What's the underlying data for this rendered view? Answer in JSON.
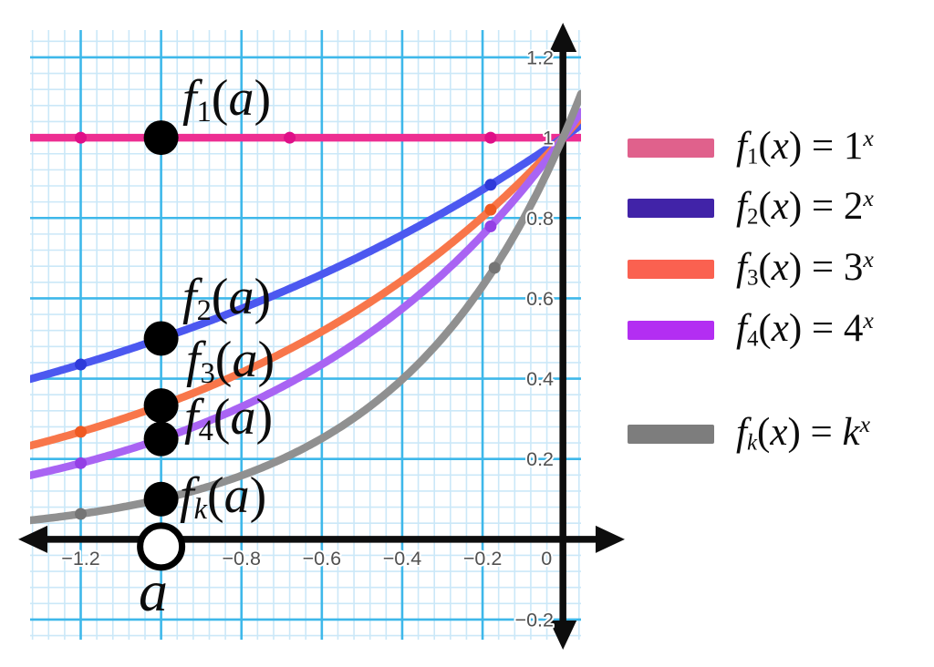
{
  "figure": {
    "a_label": "a"
  },
  "point_labels": [
    {
      "f": "f",
      "sub": "1",
      "open": "(",
      "var": "a",
      "close": ")"
    },
    {
      "f": "f",
      "sub": "2",
      "open": "(",
      "var": "a",
      "close": ")"
    },
    {
      "f": "f",
      "sub": "3",
      "open": "(",
      "var": "a",
      "close": ")"
    },
    {
      "f": "f",
      "sub": "4",
      "open": "(",
      "var": "a",
      "close": ")"
    },
    {
      "f": "f",
      "sub": "k",
      "open": "(",
      "var": "a",
      "close": ")"
    }
  ],
  "legend": {
    "items": [
      {
        "f": "f",
        "sub": "1",
        "open": "(",
        "var": "x",
        "eq": ") = ",
        "base": "1",
        "exp": "x",
        "swatch_color": "#e0618c"
      },
      {
        "f": "f",
        "sub": "2",
        "open": "(",
        "var": "x",
        "eq": ") = ",
        "base": "2",
        "exp": "x",
        "swatch_color": "#4123a8"
      },
      {
        "f": "f",
        "sub": "3",
        "open": "(",
        "var": "x",
        "eq": ") = ",
        "base": "3",
        "exp": "x",
        "swatch_color": "#fa6150"
      },
      {
        "f": "f",
        "sub": "4",
        "open": "(",
        "var": "x",
        "eq": ") = ",
        "base": "4",
        "exp": "x",
        "swatch_color": "#b32ef2"
      },
      {
        "f": "f",
        "sub": "k",
        "open": "(",
        "var": "x",
        "eq": ") = ",
        "base": "k",
        "exp": "x",
        "swatch_color": "#7d7d7d"
      }
    ]
  },
  "chart_data": {
    "type": "line",
    "xlim": [
      -1.326,
      0.045
    ],
    "ylim": [
      -0.25,
      1.268
    ],
    "grid": {
      "on": true,
      "major_step": 0.2,
      "minor_step": 0.04,
      "major_color": "#3eb8ea",
      "minor_color": "#cbe8f8"
    },
    "axis_color": "#0d0d0d",
    "tick_label_color": "#515151",
    "x_ticks": [
      {
        "v": -1.2,
        "label": "−1.2"
      },
      {
        "v": -0.8,
        "label": "−0.8"
      },
      {
        "v": -0.6,
        "label": "−0.6"
      },
      {
        "v": -0.4,
        "label": "−0.4"
      },
      {
        "v": -0.2,
        "label": "−0.2"
      },
      {
        "v": 0,
        "label": "0"
      }
    ],
    "y_ticks": [
      {
        "v": 1.2,
        "label": "1.2"
      },
      {
        "v": 1,
        "label": "1"
      },
      {
        "v": 0.8,
        "label": "0.8"
      },
      {
        "v": 0.6,
        "label": "0.6"
      },
      {
        "v": 0.4,
        "label": "0.4"
      },
      {
        "v": 0.2,
        "label": "0.2"
      },
      {
        "v": -0.2,
        "label": "−0.2"
      }
    ],
    "series": [
      {
        "name": "f1(x) = 1^x",
        "base": 1,
        "color": "#ed2e92",
        "dot_color": "#df0f88",
        "sample_dot_xs": [
          -1.2,
          -0.68,
          -0.18
        ],
        "value_at_a": 1
      },
      {
        "name": "f2(x) = 2^x",
        "base": 2,
        "color": "#4c58f0",
        "dot_color": "#2e3ad9",
        "sample_dot_xs": [
          -1.2,
          -0.18
        ],
        "value_at_a": 0.5
      },
      {
        "name": "f3(x) = 3^x",
        "base": 3,
        "color": "#f8764a",
        "dot_color": "#ef5a22",
        "sample_dot_xs": [
          -1.2,
          -0.18
        ],
        "value_at_a": 0.333
      },
      {
        "name": "f4(x) = 4^x",
        "base": 4,
        "color": "#a964f3",
        "dot_color": "#9340e5",
        "sample_dot_xs": [
          -1.2,
          -0.18
        ],
        "value_at_a": 0.25
      },
      {
        "name": "fk(x) = k^x",
        "base": 10,
        "base_label": "k",
        "color": "#909090",
        "dot_color": "#757575",
        "sample_dot_xs": [
          -1.2,
          -0.17
        ],
        "value_at_a": 0.1
      }
    ],
    "marked_point": {
      "x": -1,
      "label": "a"
    }
  }
}
